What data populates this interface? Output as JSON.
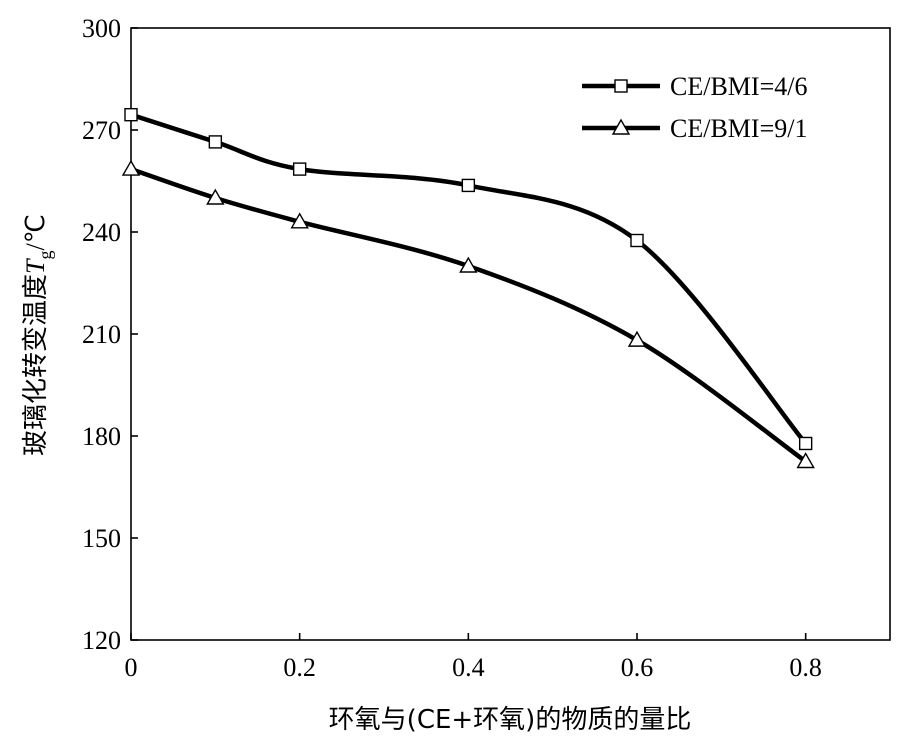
{
  "chart_data": {
    "type": "line",
    "title": "",
    "xlabel": "环氧与(CE+环氧)的物质的量比",
    "ylabel": {
      "prefix": "玻璃化转变温度",
      "symbol": "T",
      "subscript": "g",
      "unit": "/℃"
    },
    "xlim": [
      0,
      0.9
    ],
    "ylim": [
      120,
      300
    ],
    "x_ticks": [
      0,
      0.2,
      0.4,
      0.6,
      0.8
    ],
    "x_tick_labels": [
      "0",
      "0.2",
      "0.4",
      "0.6",
      "0.8"
    ],
    "y_ticks": [
      120,
      150,
      180,
      210,
      240,
      270,
      300
    ],
    "y_tick_labels": [
      "120",
      "150",
      "180",
      "210",
      "240",
      "270",
      "300"
    ],
    "grid": false,
    "legend_position": "top-right",
    "x": [
      0,
      0.1,
      0.2,
      0.4,
      0.6,
      0.8
    ],
    "series": [
      {
        "name": "CE/BMI=4/6",
        "marker": "square",
        "values": [
          274.5,
          266.5,
          258.5,
          253.7,
          237.5,
          177.8
        ]
      },
      {
        "name": "CE/BMI=9/1",
        "marker": "triangle",
        "values": [
          258.5,
          250,
          243,
          230,
          208.2,
          172.5
        ]
      }
    ],
    "colors": {
      "line": "#000000",
      "marker_fill": "#ffffff",
      "background": "#ffffff"
    }
  }
}
